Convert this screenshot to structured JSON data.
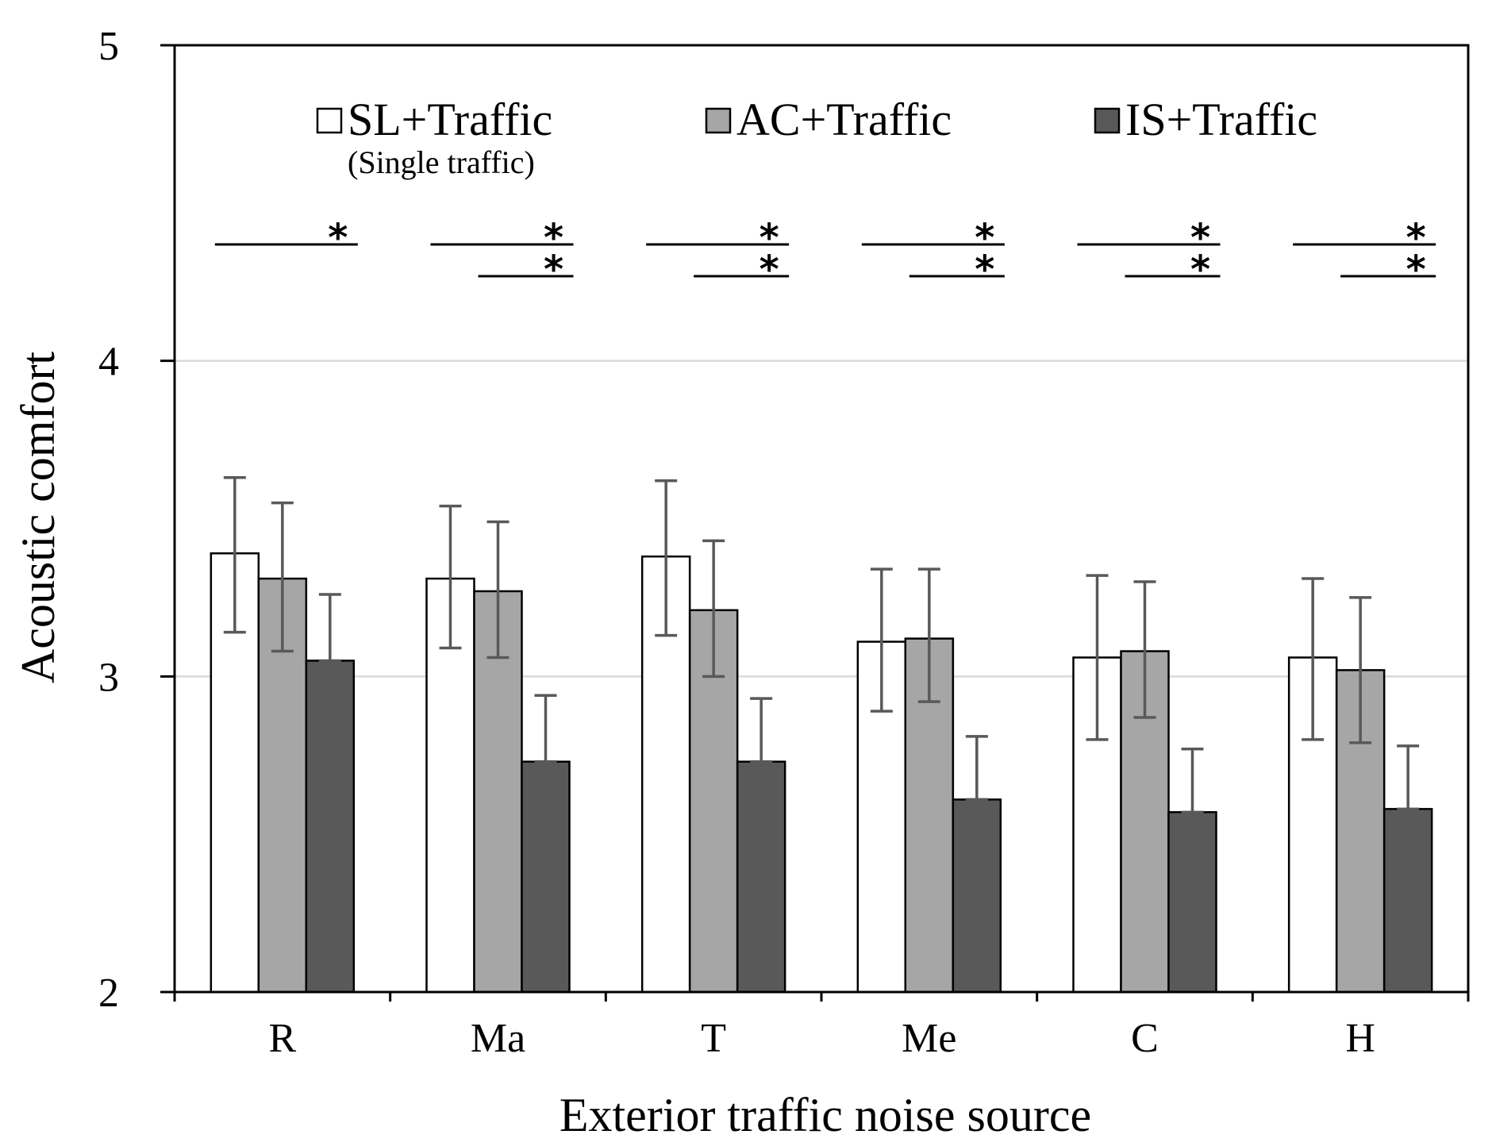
{
  "chart_data": {
    "type": "bar",
    "xlabel": "Exterior traffic noise source",
    "ylabel": "Acoustic comfort",
    "ylim": [
      2,
      5
    ],
    "yticks": [
      2,
      3,
      4,
      5
    ],
    "gridlines": [
      3,
      4
    ],
    "categories": [
      "R",
      "Ma",
      "T",
      "Me",
      "C",
      "H"
    ],
    "series": [
      {
        "name": "SL+Traffic",
        "sublabel": "(Single traffic)",
        "color": "#ffffff",
        "values": [
          3.39,
          3.31,
          3.38,
          3.11,
          3.06,
          3.06
        ],
        "err_low": [
          3.14,
          3.09,
          3.13,
          2.89,
          2.8,
          2.8
        ],
        "err_high": [
          3.63,
          3.54,
          3.62,
          3.34,
          3.32,
          3.31
        ]
      },
      {
        "name": "AC+Traffic",
        "color": "#a6a6a6",
        "values": [
          3.31,
          3.27,
          3.21,
          3.12,
          3.08,
          3.02
        ],
        "err_low": [
          3.08,
          3.06,
          3.0,
          2.92,
          2.87,
          2.79
        ],
        "err_high": [
          3.55,
          3.49,
          3.43,
          3.34,
          3.3,
          3.25
        ]
      },
      {
        "name": "IS+Traffic",
        "color": "#595959",
        "values": [
          3.05,
          2.73,
          2.73,
          2.61,
          2.57,
          2.58
        ],
        "err_low": [
          3.05,
          2.73,
          2.73,
          2.61,
          2.57,
          2.58
        ],
        "err_high": [
          3.26,
          2.94,
          2.93,
          2.81,
          2.77,
          2.78
        ]
      }
    ],
    "significance": [
      {
        "category": "R",
        "pairs": [
          [
            "SL+Traffic",
            "IS+Traffic"
          ]
        ],
        "symbol": "*"
      },
      {
        "category": "Ma",
        "pairs": [
          [
            "SL+Traffic",
            "IS+Traffic"
          ],
          [
            "AC+Traffic",
            "IS+Traffic"
          ]
        ],
        "symbol": "*"
      },
      {
        "category": "T",
        "pairs": [
          [
            "SL+Traffic",
            "IS+Traffic"
          ],
          [
            "AC+Traffic",
            "IS+Traffic"
          ]
        ],
        "symbol": "*"
      },
      {
        "category": "Me",
        "pairs": [
          [
            "SL+Traffic",
            "IS+Traffic"
          ],
          [
            "AC+Traffic",
            "IS+Traffic"
          ]
        ],
        "symbol": "*"
      },
      {
        "category": "C",
        "pairs": [
          [
            "SL+Traffic",
            "IS+Traffic"
          ],
          [
            "AC+Traffic",
            "IS+Traffic"
          ]
        ],
        "symbol": "*"
      },
      {
        "category": "H",
        "pairs": [
          [
            "SL+Traffic",
            "IS+Traffic"
          ],
          [
            "AC+Traffic",
            "IS+Traffic"
          ]
        ],
        "symbol": "*"
      }
    ],
    "legend_position": "top",
    "grid_color": "#d9d9d9",
    "error_bar_color": "#595959"
  }
}
